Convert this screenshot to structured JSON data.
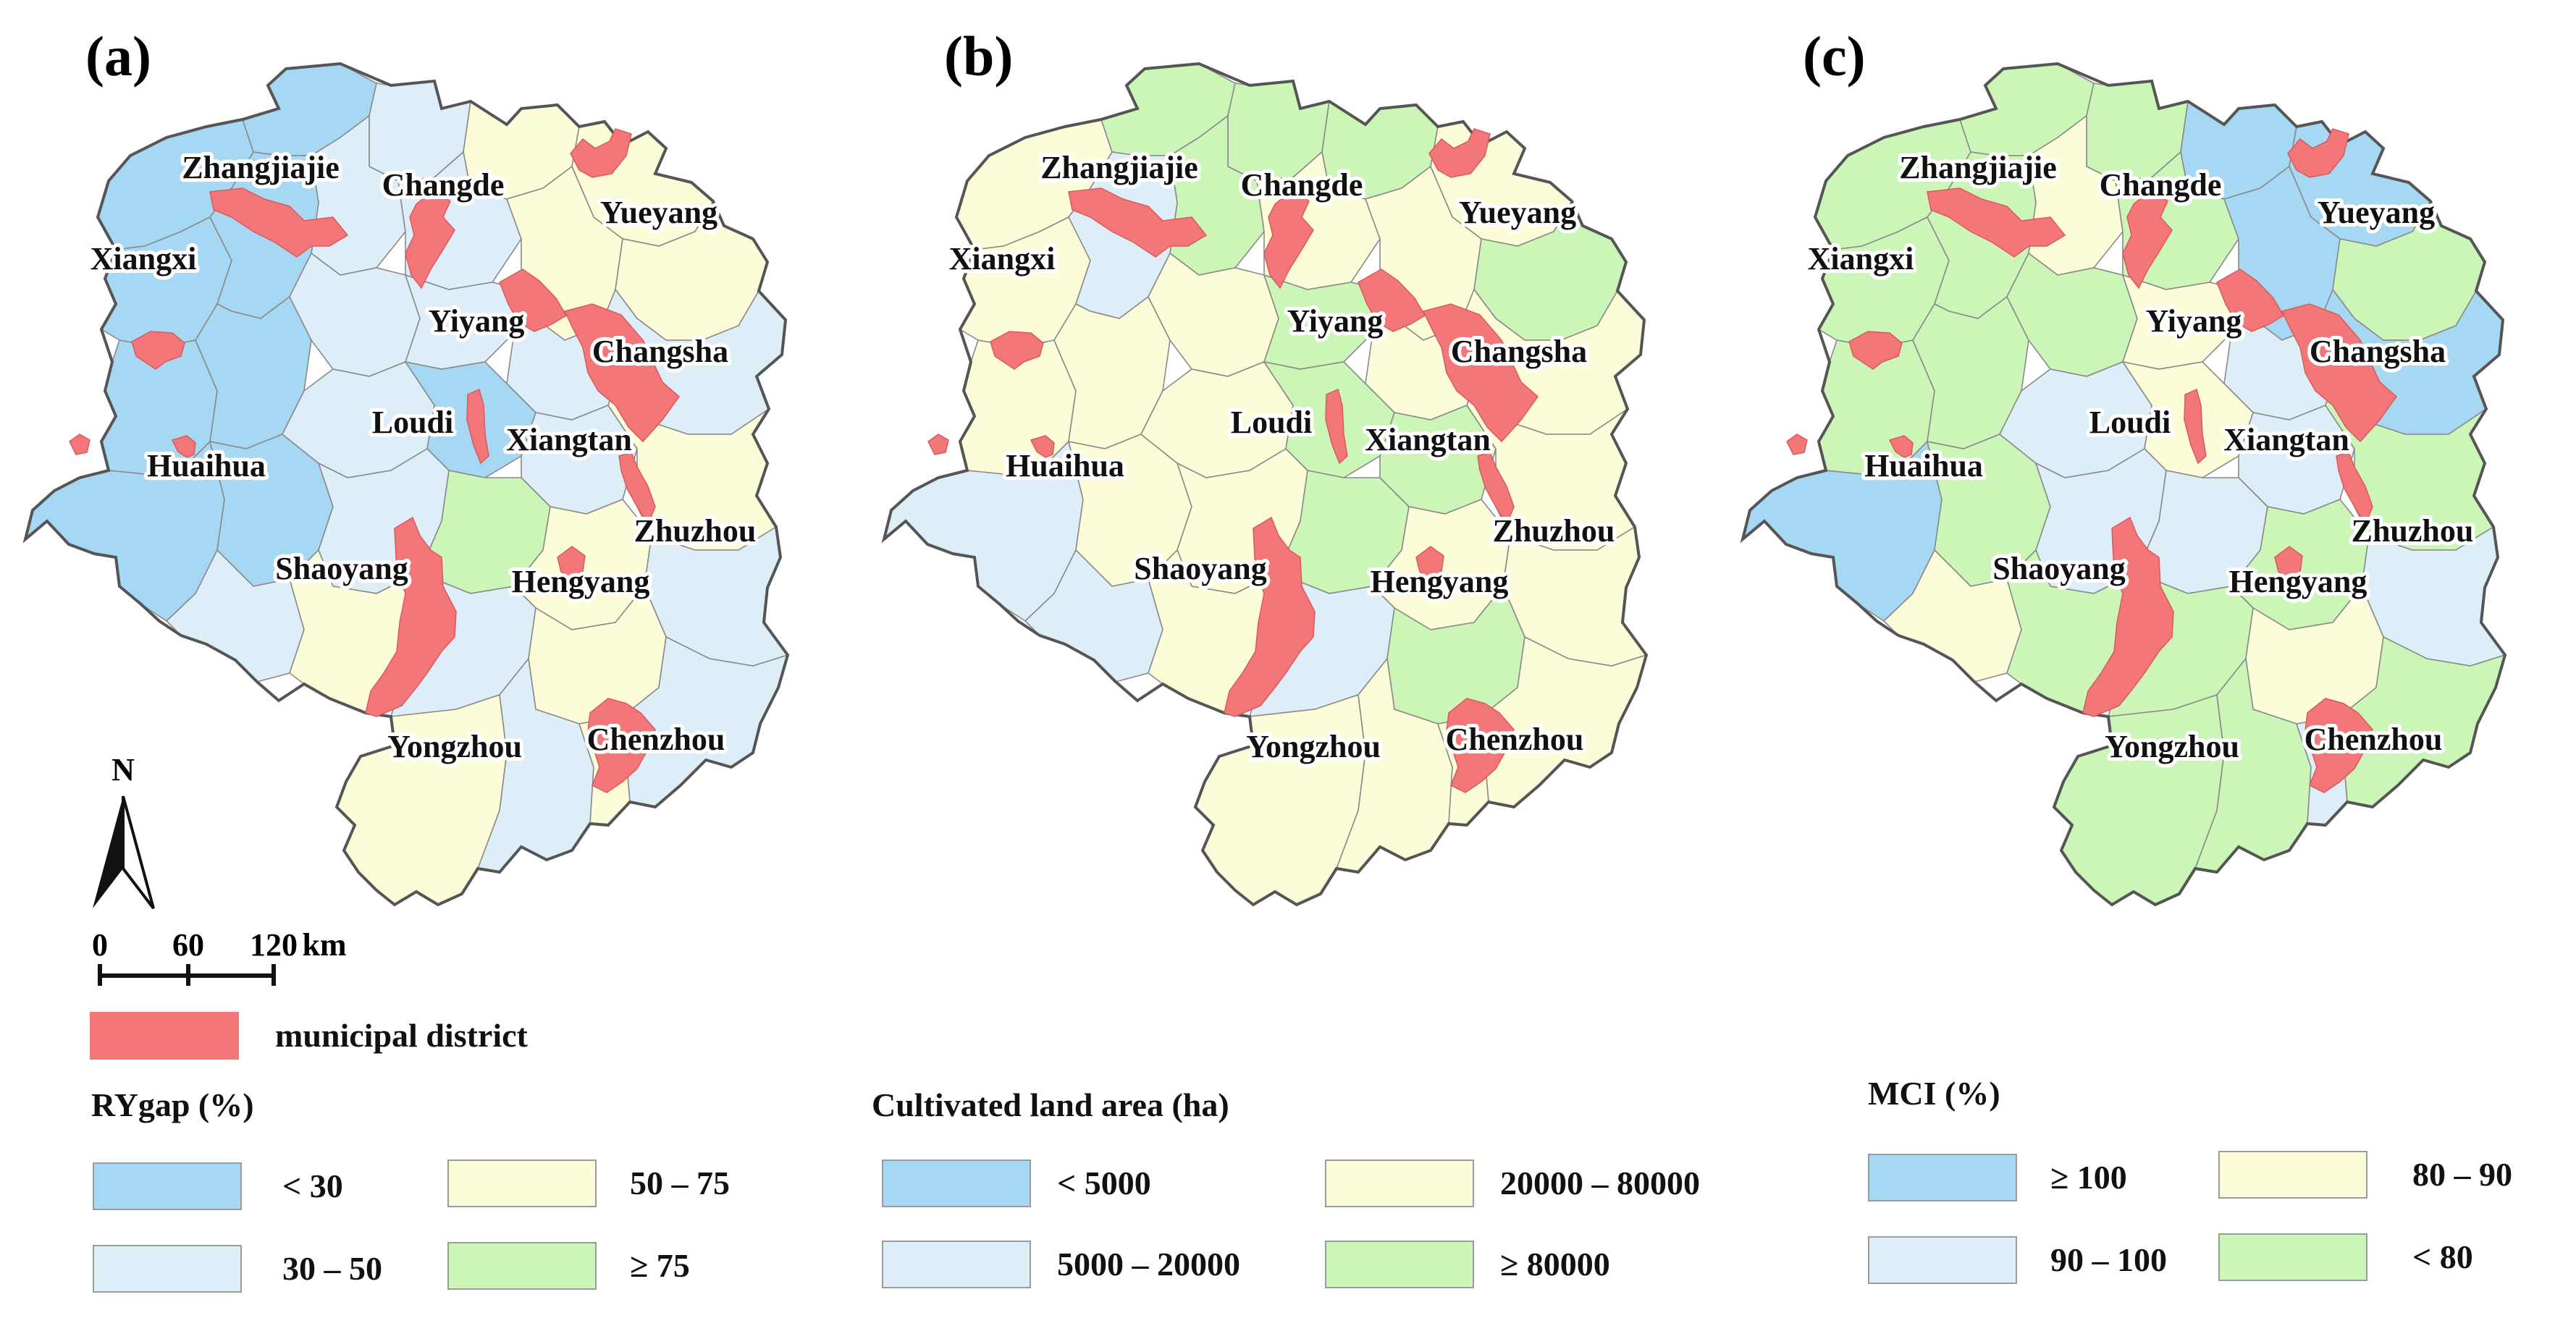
{
  "colors": {
    "blue": "#a6d7f3",
    "lightblue": "#deeef8",
    "yellow": "#fdfcd9",
    "green": "#ccf5b8",
    "municipal": "#f37779"
  },
  "panels": [
    {
      "letter": "(a)",
      "legend_title": "RYgap (%)",
      "legend_items": [
        {
          "label": "< 30",
          "color": "#a6d7f3"
        },
        {
          "label": "50 – 75",
          "color": "#fdfcd9"
        },
        {
          "label": "30 – 50",
          "color": "#deeef8"
        },
        {
          "label": "≥ 75",
          "color": "#ccf5b8"
        }
      ]
    },
    {
      "letter": "(b)",
      "legend_title": "Cultivated land area (ha)",
      "legend_items": [
        {
          "label": "< 5000",
          "color": "#a6d7f3"
        },
        {
          "label": "20000 – 80000",
          "color": "#fdfcd9"
        },
        {
          "label": "5000 – 20000",
          "color": "#deeef8"
        },
        {
          "label": "≥ 80000",
          "color": "#ccf5b8"
        }
      ]
    },
    {
      "letter": "(c)",
      "legend_title": "MCI (%)",
      "legend_items": [
        {
          "label": "≥ 100",
          "color": "#a6d7f3"
        },
        {
          "label": "80 – 90",
          "color": "#fdfcd9"
        },
        {
          "label": "90 – 100",
          "color": "#deeef8"
        },
        {
          "label": "< 80",
          "color": "#ccf5b8"
        }
      ]
    }
  ],
  "cities": {
    "zhangjiajie": "Zhangjiajie",
    "changde": "Changde",
    "yueyang": "Yueyang",
    "xiangxi": "Xiangxi",
    "yiyang": "Yiyang",
    "changsha": "Changsha",
    "loudi": "Loudi",
    "xiangtan": "Xiangtan",
    "huaihua": "Huaihua",
    "zhuzhou": "Zhuzhou",
    "shaoyang": "Shaoyang",
    "hengyang": "Hengyang",
    "yongzhou": "Yongzhou",
    "chenzhou": "Chenzhou"
  },
  "north_arrow": {
    "label": "N"
  },
  "scale_bar": {
    "ticks": [
      "0",
      "60",
      "120"
    ],
    "unit": "km"
  },
  "municipal_legend": {
    "label": "municipal district",
    "color": "#f37779"
  }
}
